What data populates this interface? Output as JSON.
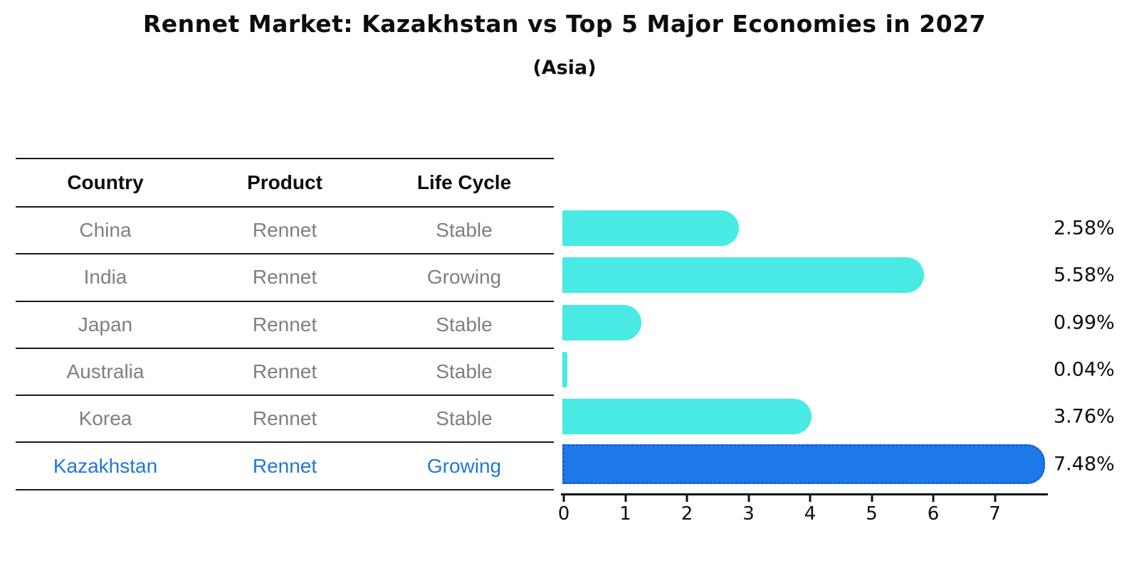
{
  "title": "Rennet Market: Kazakhstan vs Top 5 Major Economies in 2027",
  "subtitle": "(Asia)",
  "table": {
    "columns": [
      "Country",
      "Product",
      "Life Cycle"
    ],
    "rows": [
      {
        "country": "China",
        "product": "Rennet",
        "life_cycle": "Stable",
        "highlight": false
      },
      {
        "country": "India",
        "product": "Rennet",
        "life_cycle": "Growing",
        "highlight": false
      },
      {
        "country": "Japan",
        "product": "Rennet",
        "life_cycle": "Stable",
        "highlight": false
      },
      {
        "country": "Australia",
        "product": "Rennet",
        "life_cycle": "Stable",
        "highlight": false
      },
      {
        "country": "Korea",
        "product": "Rennet",
        "life_cycle": "Stable",
        "highlight": false
      },
      {
        "country": "Kazakhstan",
        "product": "Rennet",
        "life_cycle": "Growing",
        "highlight": true
      }
    ]
  },
  "chart_data": {
    "type": "bar",
    "orientation": "horizontal",
    "title": "Rennet Market: Kazakhstan vs Top 5 Major Economies in 2027",
    "subtitle": "(Asia)",
    "categories": [
      "China",
      "India",
      "Japan",
      "Australia",
      "Korea",
      "Kazakhstan"
    ],
    "values": [
      2.58,
      5.58,
      0.99,
      0.04,
      3.76,
      7.48
    ],
    "value_labels": [
      "2.58%",
      "5.58%",
      "0.99%",
      "0.04%",
      "3.76%",
      "7.48%"
    ],
    "x_ticks": [
      "0",
      "1",
      "2",
      "3",
      "4",
      "5",
      "6",
      "7"
    ],
    "xlim": [
      0,
      7.86
    ],
    "grid": false,
    "legend": "none",
    "highlight_index": 5,
    "colors": {
      "bar": "#48eae3",
      "highlight_bar": "#1f78e9",
      "highlight_border": "#1a5fcb",
      "highlight_text": "#2077d9",
      "row_text": "#7f7f7f",
      "axis": "#111111"
    }
  }
}
